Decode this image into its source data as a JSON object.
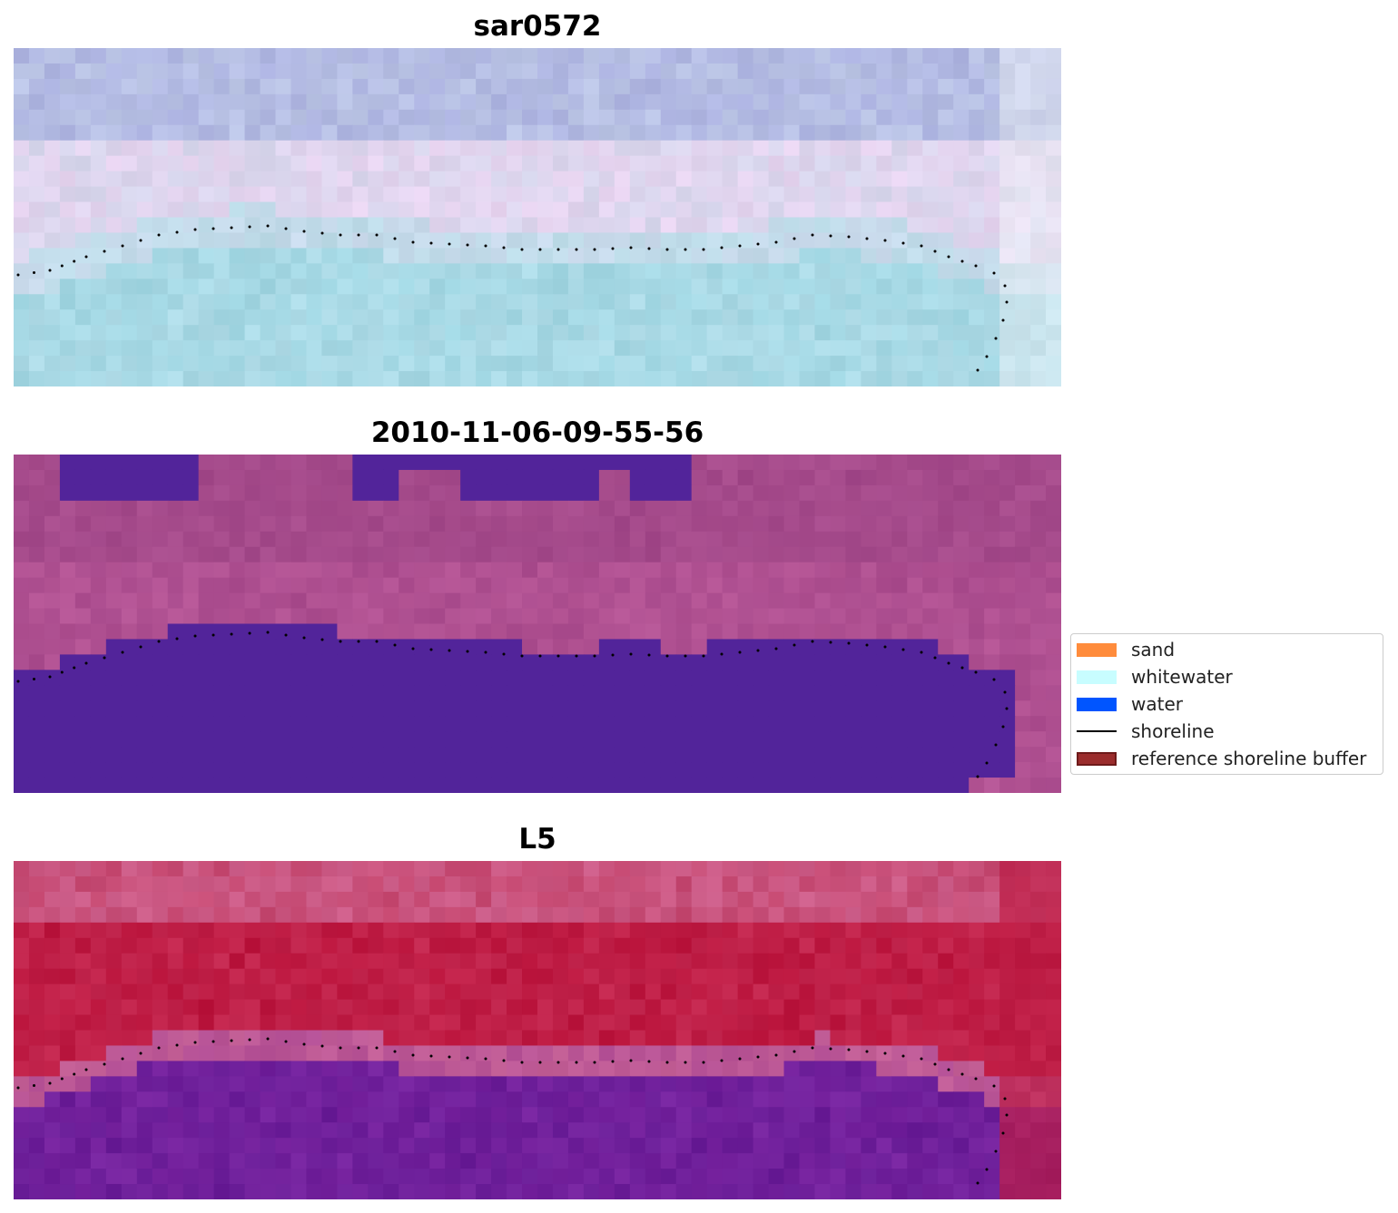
{
  "panels": [
    {
      "title": "sar0572",
      "style": "rgb"
    },
    {
      "title": "2010-11-06-09-55-56",
      "style": "classified"
    },
    {
      "title": "L5",
      "style": "index"
    }
  ],
  "legend": {
    "items": [
      {
        "label": "sand",
        "color": "#ff8c3c",
        "kind": "patch"
      },
      {
        "label": "whitewater",
        "color": "#c8fdff",
        "kind": "patch"
      },
      {
        "label": "water",
        "color": "#0055ff",
        "kind": "patch"
      },
      {
        "label": "shoreline",
        "color": "#000000",
        "kind": "line"
      },
      {
        "label": "reference shoreline buffer",
        "color": "#9b2d2d",
        "kind": "patch"
      }
    ]
  },
  "colors": {
    "water_class": "#52249a",
    "shoreline": "#000000"
  }
}
